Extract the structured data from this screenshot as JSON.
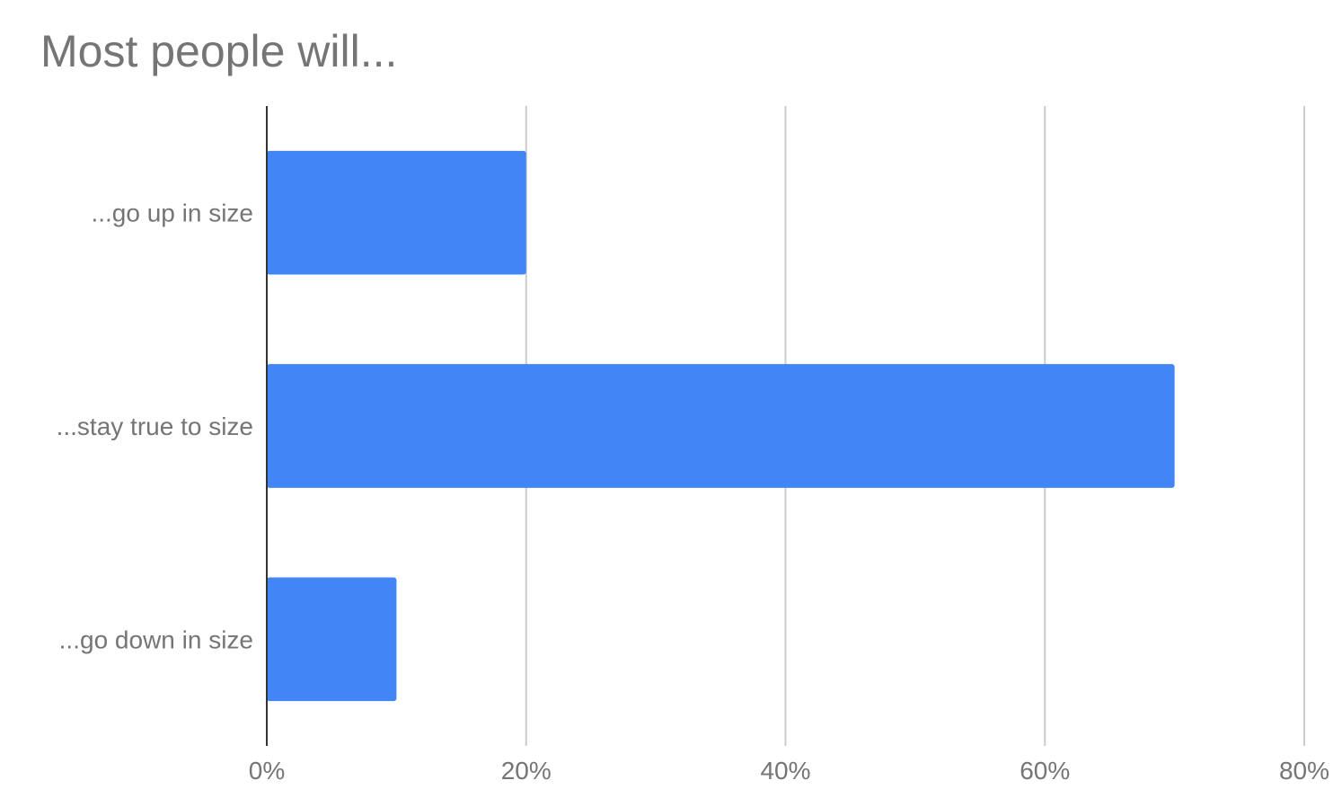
{
  "chart_data": {
    "type": "bar",
    "orientation": "horizontal",
    "title": "Most people will...",
    "xlabel": "",
    "ylabel": "",
    "categories": [
      "...go up in size",
      "...stay true to size",
      "...go down in size"
    ],
    "values": [
      0.2,
      0.7,
      0.1
    ],
    "xlim": [
      0,
      0.8
    ],
    "x_ticks": [
      0,
      0.2,
      0.4,
      0.6,
      0.8
    ],
    "x_tick_labels": [
      "0%",
      "20%",
      "40%",
      "60%",
      "80%"
    ],
    "grid": true,
    "legend": "none",
    "colors": {
      "bar": "#4285f4",
      "grid": "#cccccc",
      "axis": "#333333",
      "text": "#757575"
    }
  }
}
